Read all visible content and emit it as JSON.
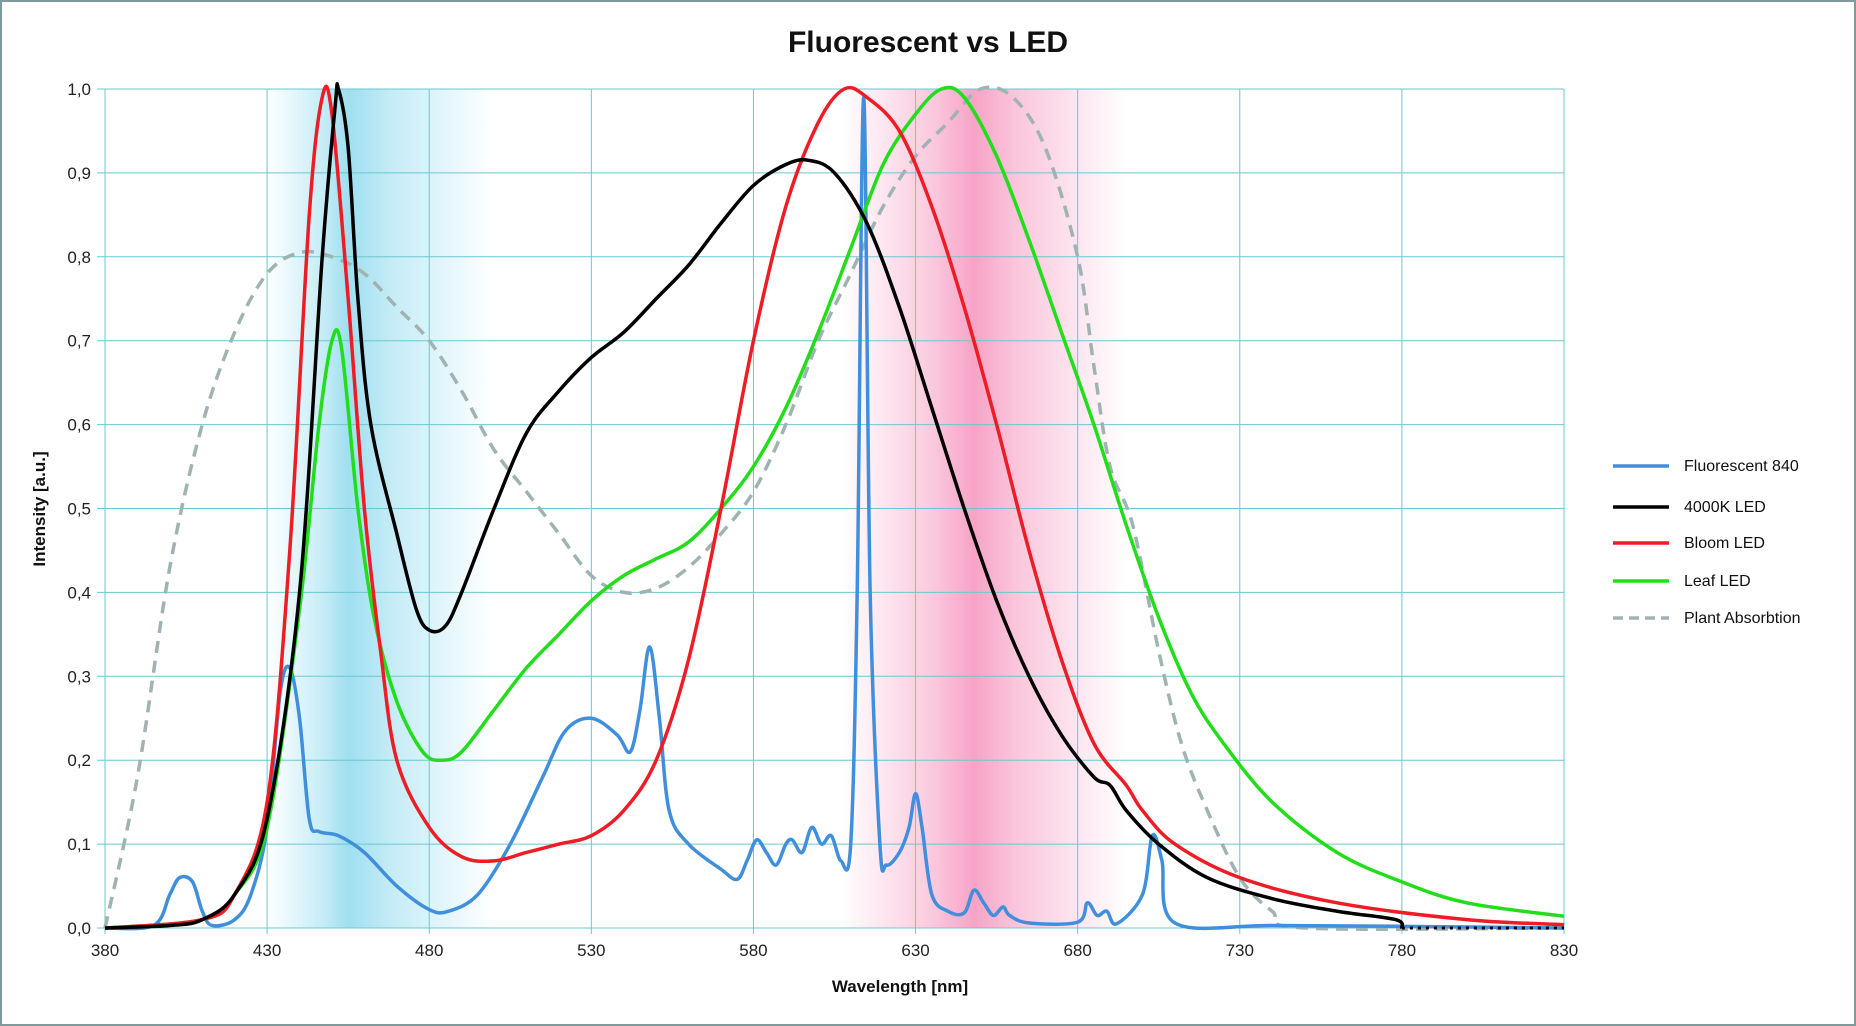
{
  "chart_data": {
    "type": "line",
    "title": "Fluorescent vs LED",
    "xlabel": "Wavelength [nm]",
    "ylabel": "Intensity [a.u.]",
    "xlim": [
      380,
      830
    ],
    "ylim": [
      0,
      1
    ],
    "x_ticks": [
      "380",
      "430",
      "480",
      "530",
      "580",
      "630",
      "680",
      "730",
      "780",
      "830"
    ],
    "x_tick_values": [
      380,
      430,
      480,
      530,
      580,
      630,
      680,
      730,
      780,
      830
    ],
    "y_ticks": [
      "0,0",
      "0,1",
      "0,2",
      "0,3",
      "0,4",
      "0,5",
      "0,6",
      "0,7",
      "0,8",
      "0,9",
      "1,0"
    ],
    "y_tick_values": [
      0,
      0.1,
      0.2,
      0.3,
      0.4,
      0.5,
      0.6,
      0.7,
      0.8,
      0.9,
      1.0
    ],
    "grid": true,
    "legend_position": "right",
    "bands": [
      {
        "from": 430,
        "to": 500,
        "center": 455,
        "color": "#9fdff0"
      },
      {
        "from": 607,
        "to": 695,
        "center": 648,
        "color": "#f7a3c6"
      }
    ],
    "series": [
      {
        "name": "Fluorescent 840",
        "color": "#3f8fdc",
        "dashed": false,
        "points": [
          [
            380,
            0
          ],
          [
            395,
            0.003
          ],
          [
            400,
            0.04
          ],
          [
            403,
            0.06
          ],
          [
            407,
            0.055
          ],
          [
            410,
            0.02
          ],
          [
            413,
            0.003
          ],
          [
            420,
            0.01
          ],
          [
            425,
            0.04
          ],
          [
            430,
            0.12
          ],
          [
            434,
            0.28
          ],
          [
            437,
            0.31
          ],
          [
            440,
            0.25
          ],
          [
            443,
            0.13
          ],
          [
            446,
            0.115
          ],
          [
            452,
            0.11
          ],
          [
            460,
            0.09
          ],
          [
            470,
            0.05
          ],
          [
            480,
            0.022
          ],
          [
            486,
            0.02
          ],
          [
            495,
            0.04
          ],
          [
            505,
            0.1
          ],
          [
            515,
            0.18
          ],
          [
            522,
            0.235
          ],
          [
            530,
            0.25
          ],
          [
            538,
            0.23
          ],
          [
            542,
            0.21
          ],
          [
            545,
            0.26
          ],
          [
            548,
            0.335
          ],
          [
            551,
            0.25
          ],
          [
            554,
            0.14
          ],
          [
            560,
            0.1
          ],
          [
            570,
            0.07
          ],
          [
            575,
            0.058
          ],
          [
            578,
            0.08
          ],
          [
            581,
            0.105
          ],
          [
            584,
            0.09
          ],
          [
            587,
            0.075
          ],
          [
            590,
            0.1
          ],
          [
            592,
            0.105
          ],
          [
            595,
            0.09
          ],
          [
            598,
            0.12
          ],
          [
            601,
            0.1
          ],
          [
            604,
            0.11
          ],
          [
            607,
            0.08
          ],
          [
            610,
            0.1
          ],
          [
            612,
            0.4
          ],
          [
            614,
            0.99
          ],
          [
            616,
            0.4
          ],
          [
            619,
            0.1
          ],
          [
            621,
            0.075
          ],
          [
            625,
            0.09
          ],
          [
            628,
            0.12
          ],
          [
            630,
            0.16
          ],
          [
            632,
            0.12
          ],
          [
            635,
            0.04
          ],
          [
            640,
            0.02
          ],
          [
            645,
            0.018
          ],
          [
            648,
            0.045
          ],
          [
            651,
            0.03
          ],
          [
            654,
            0.015
          ],
          [
            657,
            0.025
          ],
          [
            659,
            0.015
          ],
          [
            665,
            0.006
          ],
          [
            680,
            0.007
          ],
          [
            683,
            0.03
          ],
          [
            686,
            0.015
          ],
          [
            689,
            0.02
          ],
          [
            692,
            0.005
          ],
          [
            700,
            0.04
          ],
          [
            703,
            0.11
          ],
          [
            706,
            0.08
          ],
          [
            710,
            0.006
          ],
          [
            740,
            0.003
          ],
          [
            780,
            0.002
          ],
          [
            830,
            0
          ]
        ]
      },
      {
        "name": "4000K LED",
        "color": "#000000",
        "dashed": false,
        "points": [
          [
            380,
            0
          ],
          [
            400,
            0.003
          ],
          [
            410,
            0.01
          ],
          [
            420,
            0.04
          ],
          [
            430,
            0.13
          ],
          [
            440,
            0.4
          ],
          [
            447,
            0.8
          ],
          [
            451,
            0.98
          ],
          [
            452,
            1.0
          ],
          [
            455,
            0.93
          ],
          [
            458,
            0.75
          ],
          [
            462,
            0.6
          ],
          [
            470,
            0.47
          ],
          [
            476,
            0.38
          ],
          [
            480,
            0.355
          ],
          [
            485,
            0.36
          ],
          [
            490,
            0.4
          ],
          [
            500,
            0.5
          ],
          [
            510,
            0.59
          ],
          [
            520,
            0.64
          ],
          [
            530,
            0.68
          ],
          [
            540,
            0.71
          ],
          [
            550,
            0.75
          ],
          [
            560,
            0.79
          ],
          [
            570,
            0.84
          ],
          [
            580,
            0.885
          ],
          [
            590,
            0.91
          ],
          [
            597,
            0.915
          ],
          [
            605,
            0.9
          ],
          [
            615,
            0.84
          ],
          [
            625,
            0.74
          ],
          [
            635,
            0.62
          ],
          [
            645,
            0.5
          ],
          [
            655,
            0.39
          ],
          [
            665,
            0.3
          ],
          [
            675,
            0.23
          ],
          [
            685,
            0.18
          ],
          [
            690,
            0.17
          ],
          [
            695,
            0.14
          ],
          [
            705,
            0.1
          ],
          [
            720,
            0.06
          ],
          [
            740,
            0.035
          ],
          [
            760,
            0.02
          ],
          [
            778,
            0.01
          ],
          [
            780,
            0
          ]
        ]
      },
      {
        "name": "Bloom LED",
        "color": "#ee1c25",
        "dashed": false,
        "points": [
          [
            380,
            0
          ],
          [
            410,
            0.01
          ],
          [
            420,
            0.04
          ],
          [
            430,
            0.15
          ],
          [
            437,
            0.45
          ],
          [
            443,
            0.85
          ],
          [
            447,
            0.99
          ],
          [
            450,
            0.97
          ],
          [
            455,
            0.75
          ],
          [
            460,
            0.5
          ],
          [
            465,
            0.33
          ],
          [
            470,
            0.2
          ],
          [
            480,
            0.12
          ],
          [
            490,
            0.085
          ],
          [
            500,
            0.08
          ],
          [
            510,
            0.09
          ],
          [
            520,
            0.1
          ],
          [
            530,
            0.11
          ],
          [
            540,
            0.14
          ],
          [
            550,
            0.2
          ],
          [
            560,
            0.32
          ],
          [
            570,
            0.5
          ],
          [
            580,
            0.7
          ],
          [
            590,
            0.86
          ],
          [
            600,
            0.96
          ],
          [
            608,
            1.0
          ],
          [
            615,
            0.99
          ],
          [
            625,
            0.95
          ],
          [
            635,
            0.86
          ],
          [
            645,
            0.74
          ],
          [
            655,
            0.6
          ],
          [
            665,
            0.45
          ],
          [
            675,
            0.32
          ],
          [
            685,
            0.22
          ],
          [
            695,
            0.17
          ],
          [
            700,
            0.14
          ],
          [
            710,
            0.1
          ],
          [
            730,
            0.06
          ],
          [
            760,
            0.03
          ],
          [
            800,
            0.01
          ],
          [
            830,
            0.004
          ]
        ]
      },
      {
        "name": "Leaf LED",
        "color": "#22dd1a",
        "dashed": false,
        "points": [
          [
            380,
            0
          ],
          [
            410,
            0.01
          ],
          [
            420,
            0.04
          ],
          [
            430,
            0.12
          ],
          [
            440,
            0.38
          ],
          [
            446,
            0.6
          ],
          [
            450,
            0.7
          ],
          [
            453,
            0.69
          ],
          [
            458,
            0.5
          ],
          [
            463,
            0.37
          ],
          [
            470,
            0.27
          ],
          [
            478,
            0.21
          ],
          [
            484,
            0.2
          ],
          [
            490,
            0.21
          ],
          [
            500,
            0.26
          ],
          [
            510,
            0.31
          ],
          [
            520,
            0.35
          ],
          [
            530,
            0.39
          ],
          [
            540,
            0.42
          ],
          [
            550,
            0.44
          ],
          [
            560,
            0.46
          ],
          [
            570,
            0.5
          ],
          [
            580,
            0.55
          ],
          [
            590,
            0.62
          ],
          [
            600,
            0.71
          ],
          [
            610,
            0.81
          ],
          [
            620,
            0.91
          ],
          [
            630,
            0.97
          ],
          [
            638,
            1.0
          ],
          [
            645,
            0.99
          ],
          [
            655,
            0.92
          ],
          [
            665,
            0.82
          ],
          [
            675,
            0.71
          ],
          [
            685,
            0.6
          ],
          [
            695,
            0.48
          ],
          [
            705,
            0.37
          ],
          [
            715,
            0.28
          ],
          [
            725,
            0.22
          ],
          [
            740,
            0.15
          ],
          [
            760,
            0.09
          ],
          [
            780,
            0.055
          ],
          [
            800,
            0.03
          ],
          [
            830,
            0.014
          ]
        ]
      },
      {
        "name": "Plant Absorbtion",
        "color": "#9fb3b3",
        "dashed": true,
        "points": [
          [
            380,
            0
          ],
          [
            390,
            0.18
          ],
          [
            400,
            0.43
          ],
          [
            410,
            0.6
          ],
          [
            420,
            0.71
          ],
          [
            430,
            0.78
          ],
          [
            440,
            0.805
          ],
          [
            450,
            0.8
          ],
          [
            460,
            0.78
          ],
          [
            470,
            0.74
          ],
          [
            480,
            0.7
          ],
          [
            490,
            0.64
          ],
          [
            500,
            0.57
          ],
          [
            510,
            0.52
          ],
          [
            520,
            0.47
          ],
          [
            530,
            0.42
          ],
          [
            540,
            0.4
          ],
          [
            550,
            0.405
          ],
          [
            560,
            0.43
          ],
          [
            570,
            0.47
          ],
          [
            580,
            0.52
          ],
          [
            590,
            0.6
          ],
          [
            600,
            0.7
          ],
          [
            610,
            0.78
          ],
          [
            620,
            0.86
          ],
          [
            630,
            0.92
          ],
          [
            640,
            0.96
          ],
          [
            650,
            1.0
          ],
          [
            660,
            0.99
          ],
          [
            670,
            0.93
          ],
          [
            680,
            0.8
          ],
          [
            685,
            0.67
          ],
          [
            690,
            0.55
          ],
          [
            697,
            0.48
          ],
          [
            705,
            0.33
          ],
          [
            712,
            0.22
          ],
          [
            720,
            0.14
          ],
          [
            730,
            0.06
          ],
          [
            740,
            0.02
          ],
          [
            750,
            0
          ],
          [
            830,
            0
          ]
        ]
      }
    ]
  }
}
